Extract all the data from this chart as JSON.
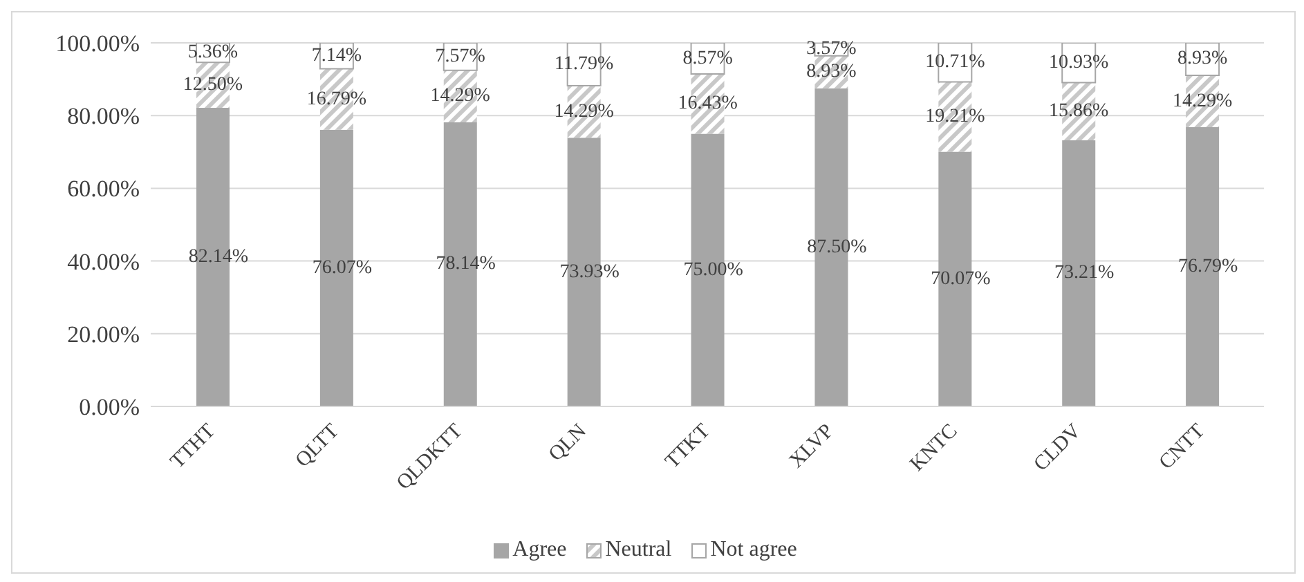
{
  "chart_data": {
    "type": "bar",
    "stacked": true,
    "categories": [
      "TTHT",
      "QLTT",
      "QLDKTT",
      "QLN",
      "TTKT",
      "XLVP",
      "KNTC",
      "CLDV",
      "CNTT"
    ],
    "ylim": [
      0,
      100
    ],
    "yticks": [
      {
        "value": 0,
        "label": "0.00%"
      },
      {
        "value": 20,
        "label": "20.00%"
      },
      {
        "value": 40,
        "label": "40.00%"
      },
      {
        "value": 60,
        "label": "60.00%"
      },
      {
        "value": 80,
        "label": "80.00%"
      },
      {
        "value": 100,
        "label": "100.00%"
      }
    ],
    "grid": "y",
    "legend": "bottom",
    "series": [
      {
        "name": "Agree",
        "color": "#a6a6a6",
        "values": [
          82.14,
          76.07,
          78.14,
          73.93,
          75.0,
          87.5,
          70.07,
          73.21,
          76.79
        ],
        "value_labels": [
          "82.14%",
          "76.07%",
          "78.14%",
          "73.93%",
          "75.00%",
          "87.50%",
          "70.07%",
          "73.21%",
          "76.79%"
        ]
      },
      {
        "name": "Neutral",
        "color": "#c8c8c8",
        "values": [
          12.5,
          16.79,
          14.29,
          14.29,
          16.43,
          8.93,
          19.21,
          15.86,
          14.29
        ],
        "value_labels": [
          "12.50%",
          "16.79%",
          "14.29%",
          "14.29%",
          "16.43%",
          "8.93%",
          "19.21%",
          "15.86%",
          "14.29%"
        ]
      },
      {
        "name": "Not agree",
        "color": "#ffffff",
        "values": [
          5.36,
          7.14,
          7.57,
          11.79,
          8.57,
          3.57,
          10.71,
          10.93,
          8.93
        ],
        "value_labels": [
          "5.36%",
          "7.14%",
          "7.57%",
          "11.79%",
          "8.57%",
          "3.57%",
          "10.71%",
          "10.93%",
          "8.93%"
        ]
      }
    ]
  }
}
